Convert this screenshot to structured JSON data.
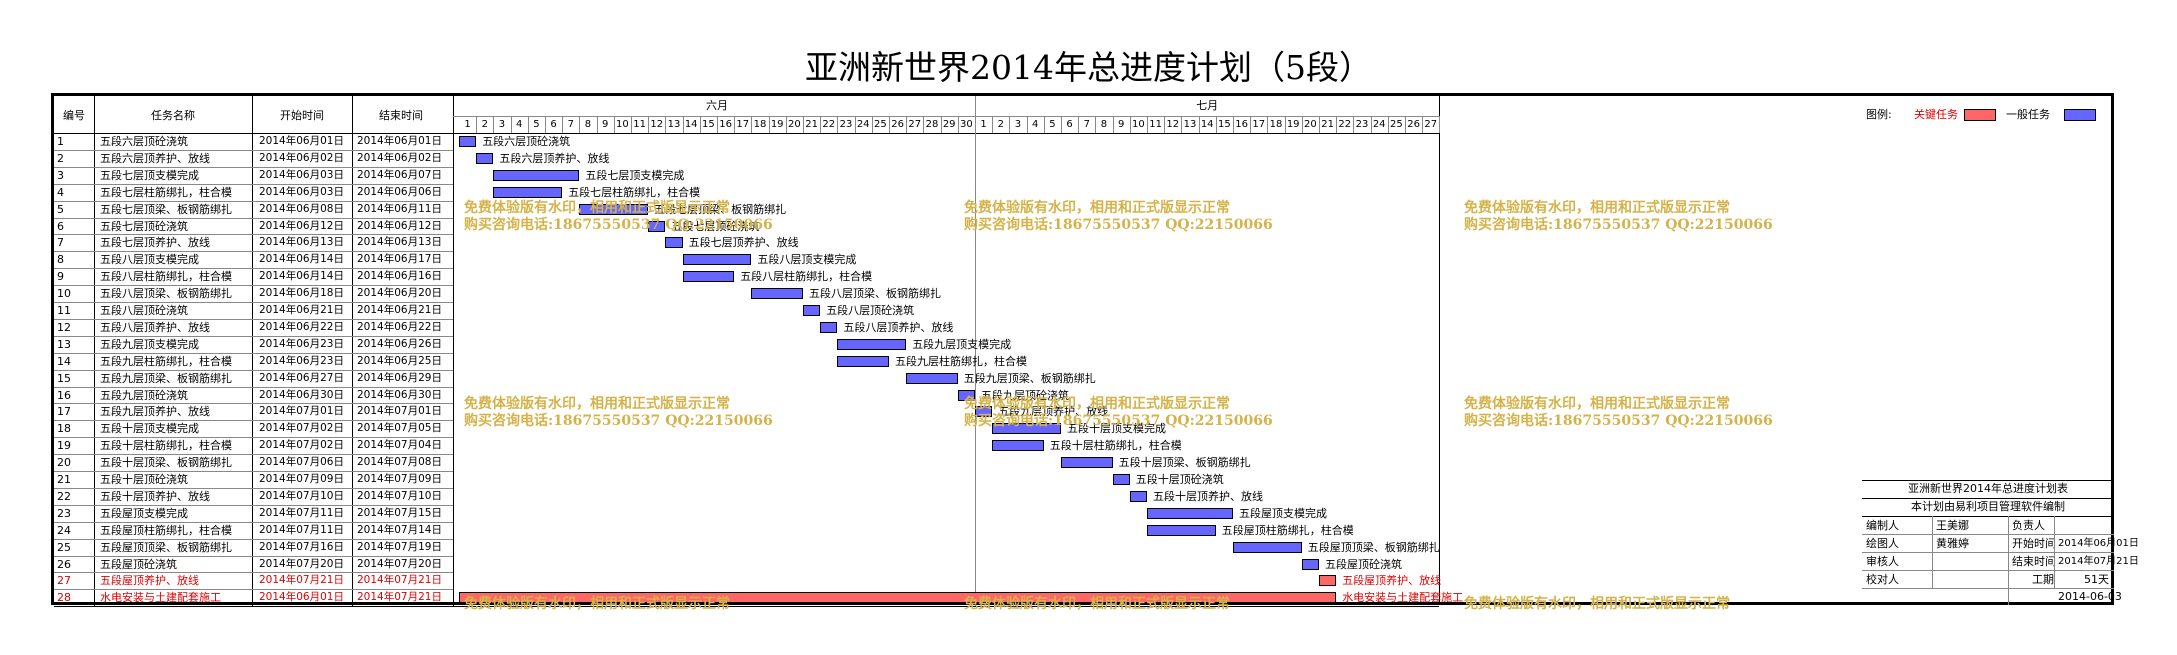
{
  "title": "亚洲新世界2014年总进度计划（5段）",
  "headers": {
    "id": "编号",
    "task": "任务名称",
    "start": "开始时间",
    "end": "结束时间",
    "month1": "六月",
    "month2": "七月"
  },
  "days_june": [
    "1",
    "2",
    "3",
    "4",
    "5",
    "6",
    "7",
    "8",
    "9",
    "10",
    "11",
    "12",
    "13",
    "14",
    "15",
    "16",
    "17",
    "18",
    "19",
    "20",
    "21",
    "22",
    "23",
    "24",
    "25",
    "26",
    "27",
    "28",
    "29",
    "30"
  ],
  "days_july": [
    "1",
    "2",
    "3",
    "4",
    "5",
    "6",
    "7",
    "8",
    "9",
    "10",
    "11",
    "12",
    "13",
    "14",
    "15",
    "16",
    "17",
    "18",
    "19",
    "20",
    "21",
    "22",
    "23",
    "24",
    "25",
    "26",
    "27"
  ],
  "legend": {
    "label": "图例:",
    "critical": "关键任务",
    "normal": "一般任务",
    "critical_color": "#ff6666",
    "normal_color": "#6666ff"
  },
  "colors": {
    "normal": "#6666ff",
    "critical": "#ff6666",
    "watermark": "#d4b34a"
  },
  "chart_data": {
    "type": "gantt",
    "x_axis_range": [
      "2014-06-01",
      "2014-07-27"
    ],
    "tasks": [
      {
        "id": "1",
        "name": "五段六层顶砼浇筑",
        "start": "2014年06月01日",
        "end": "2014年06月01日",
        "s": 1,
        "e": 1,
        "critical": false
      },
      {
        "id": "2",
        "name": "五段六层顶养护、放线",
        "start": "2014年06月02日",
        "end": "2014年06月02日",
        "s": 2,
        "e": 2,
        "critical": false
      },
      {
        "id": "3",
        "name": "五段七层顶支模完成",
        "start": "2014年06月03日",
        "end": "2014年06月07日",
        "s": 3,
        "e": 7,
        "critical": false
      },
      {
        "id": "4",
        "name": "五段七层柱筋绑扎，柱合模",
        "start": "2014年06月03日",
        "end": "2014年06月06日",
        "s": 3,
        "e": 6,
        "critical": false
      },
      {
        "id": "5",
        "name": "五段七层顶梁、板钢筋绑扎",
        "start": "2014年06月08日",
        "end": "2014年06月11日",
        "s": 8,
        "e": 11,
        "critical": false
      },
      {
        "id": "6",
        "name": "五段七层顶砼浇筑",
        "start": "2014年06月12日",
        "end": "2014年06月12日",
        "s": 12,
        "e": 12,
        "critical": false
      },
      {
        "id": "7",
        "name": "五段七层顶养护、放线",
        "start": "2014年06月13日",
        "end": "2014年06月13日",
        "s": 13,
        "e": 13,
        "critical": false
      },
      {
        "id": "8",
        "name": "五段八层顶支模完成",
        "start": "2014年06月14日",
        "end": "2014年06月17日",
        "s": 14,
        "e": 17,
        "critical": false
      },
      {
        "id": "9",
        "name": "五段八层柱筋绑扎，柱合模",
        "start": "2014年06月14日",
        "end": "2014年06月16日",
        "s": 14,
        "e": 16,
        "critical": false
      },
      {
        "id": "10",
        "name": "五段八层顶梁、板钢筋绑扎",
        "start": "2014年06月18日",
        "end": "2014年06月20日",
        "s": 18,
        "e": 20,
        "critical": false
      },
      {
        "id": "11",
        "name": "五段八层顶砼浇筑",
        "start": "2014年06月21日",
        "end": "2014年06月21日",
        "s": 21,
        "e": 21,
        "critical": false
      },
      {
        "id": "12",
        "name": "五段八层顶养护、放线",
        "start": "2014年06月22日",
        "end": "2014年06月22日",
        "s": 22,
        "e": 22,
        "critical": false
      },
      {
        "id": "13",
        "name": "五段九层顶支模完成",
        "start": "2014年06月23日",
        "end": "2014年06月26日",
        "s": 23,
        "e": 26,
        "critical": false
      },
      {
        "id": "14",
        "name": "五段九层柱筋绑扎，柱合模",
        "start": "2014年06月23日",
        "end": "2014年06月25日",
        "s": 23,
        "e": 25,
        "critical": false
      },
      {
        "id": "15",
        "name": "五段九层顶梁、板钢筋绑扎",
        "start": "2014年06月27日",
        "end": "2014年06月29日",
        "s": 27,
        "e": 29,
        "critical": false
      },
      {
        "id": "16",
        "name": "五段九层顶砼浇筑",
        "start": "2014年06月30日",
        "end": "2014年06月30日",
        "s": 30,
        "e": 30,
        "critical": false
      },
      {
        "id": "17",
        "name": "五段九层顶养护、放线",
        "start": "2014年07月01日",
        "end": "2014年07月01日",
        "s": 31,
        "e": 31,
        "critical": false
      },
      {
        "id": "18",
        "name": "五段十层顶支模完成",
        "start": "2014年07月02日",
        "end": "2014年07月05日",
        "s": 32,
        "e": 35,
        "critical": false
      },
      {
        "id": "19",
        "name": "五段十层柱筋绑扎，柱合模",
        "start": "2014年07月02日",
        "end": "2014年07月04日",
        "s": 32,
        "e": 34,
        "critical": false
      },
      {
        "id": "20",
        "name": "五段十层顶梁、板钢筋绑扎",
        "start": "2014年07月06日",
        "end": "2014年07月08日",
        "s": 36,
        "e": 38,
        "critical": false
      },
      {
        "id": "21",
        "name": "五段十层顶砼浇筑",
        "start": "2014年07月09日",
        "end": "2014年07月09日",
        "s": 39,
        "e": 39,
        "critical": false
      },
      {
        "id": "22",
        "name": "五段十层顶养护、放线",
        "start": "2014年07月10日",
        "end": "2014年07月10日",
        "s": 40,
        "e": 40,
        "critical": false
      },
      {
        "id": "23",
        "name": "五段屋顶支模完成",
        "start": "2014年07月11日",
        "end": "2014年07月15日",
        "s": 41,
        "e": 45,
        "critical": false
      },
      {
        "id": "24",
        "name": "五段屋顶柱筋绑扎，柱合模",
        "start": "2014年07月11日",
        "end": "2014年07月14日",
        "s": 41,
        "e": 44,
        "critical": false
      },
      {
        "id": "25",
        "name": "五段屋顶顶梁、板钢筋绑扎",
        "start": "2014年07月16日",
        "end": "2014年07月19日",
        "s": 46,
        "e": 49,
        "critical": false
      },
      {
        "id": "26",
        "name": "五段屋顶砼浇筑",
        "start": "2014年07月20日",
        "end": "2014年07月20日",
        "s": 50,
        "e": 50,
        "critical": false
      },
      {
        "id": "27",
        "name": "五段屋顶养护、放线",
        "start": "2014年07月21日",
        "end": "2014年07月21日",
        "s": 51,
        "e": 51,
        "critical": true
      },
      {
        "id": "28",
        "name": "水电安装与土建配套施工",
        "start": "2014年06月01日",
        "end": "2014年07月21日",
        "s": 1,
        "e": 51,
        "critical": true
      }
    ]
  },
  "info_table": {
    "title": "亚洲新世界2014年总进度计划表",
    "subtitle": "本计划由易利项目管理软件编制",
    "editor_label": "编制人",
    "editor": "王美娜",
    "owner_label": "负责人",
    "owner": "",
    "drawer_label": "绘图人",
    "drawer": "黄雅婷",
    "start_label": "开始时间",
    "start": "2014年06月01日",
    "reviewer_label": "审核人",
    "reviewer": "",
    "end_label": "结束时间",
    "end": "2014年07月21日",
    "checker_label": "校对人",
    "checker": "",
    "duration_label": "工期",
    "duration": "51天",
    "date": "2014-06-03"
  },
  "watermark": {
    "line1": "免费体验版有水印，相用和正式版显示正常",
    "line2": "购买咨询电话:18675550537 QQ:22150066"
  }
}
